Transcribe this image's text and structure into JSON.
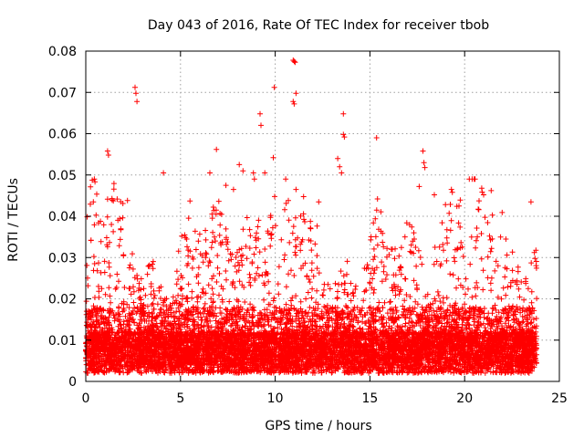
{
  "chart_data": {
    "type": "scatter",
    "title": "Day 043 of 2016, Rate Of TEC Index for receiver tbob",
    "xlabel": "GPS time / hours",
    "ylabel": "ROTI / TECUs",
    "xlim": [
      0,
      25
    ],
    "ylim": [
      0,
      0.08
    ],
    "xticks": [
      "0",
      "5",
      "10",
      "15",
      "20",
      "25"
    ],
    "yticks": [
      "0",
      "0.01",
      "0.02",
      "0.03",
      "0.04",
      "0.05",
      "0.06",
      "0.07",
      "0.08"
    ],
    "grid": true,
    "marker": "plus",
    "color": "#ff0000",
    "series": [
      {
        "name": "ROTI",
        "outliers": [
          [
            1.15,
            0.0558
          ],
          [
            1.2,
            0.0548
          ],
          [
            2.6,
            0.0712
          ],
          [
            2.65,
            0.0698
          ],
          [
            2.7,
            0.0678
          ],
          [
            4.1,
            0.0505
          ],
          [
            5.5,
            0.0437
          ],
          [
            6.55,
            0.0505
          ],
          [
            6.9,
            0.0562
          ],
          [
            7.4,
            0.0475
          ],
          [
            7.8,
            0.0465
          ],
          [
            8.1,
            0.0525
          ],
          [
            8.3,
            0.051
          ],
          [
            8.85,
            0.0505
          ],
          [
            8.9,
            0.049
          ],
          [
            9.2,
            0.0648
          ],
          [
            9.25,
            0.062
          ],
          [
            9.45,
            0.0505
          ],
          [
            9.95,
            0.0712
          ],
          [
            9.9,
            0.0542
          ],
          [
            10.95,
            0.0778
          ],
          [
            11.0,
            0.0775
          ],
          [
            11.05,
            0.0773
          ],
          [
            11.1,
            0.0698
          ],
          [
            10.95,
            0.0678
          ],
          [
            11.0,
            0.0672
          ],
          [
            11.1,
            0.0465
          ],
          [
            12.3,
            0.0435
          ],
          [
            13.3,
            0.054
          ],
          [
            13.4,
            0.052
          ],
          [
            13.5,
            0.0505
          ],
          [
            13.6,
            0.0648
          ],
          [
            13.6,
            0.0598
          ],
          [
            13.65,
            0.0592
          ],
          [
            15.35,
            0.059
          ],
          [
            15.4,
            0.0442
          ],
          [
            17.6,
            0.0472
          ],
          [
            17.8,
            0.0558
          ],
          [
            17.85,
            0.053
          ],
          [
            17.9,
            0.0518
          ],
          [
            18.4,
            0.0452
          ],
          [
            19.3,
            0.0465
          ],
          [
            19.35,
            0.0458
          ],
          [
            19.7,
            0.0425
          ],
          [
            20.9,
            0.0468
          ],
          [
            21.0,
            0.0452
          ],
          [
            21.4,
            0.0462
          ],
          [
            23.5,
            0.0435
          ],
          [
            0.4,
            0.0435
          ],
          [
            2.2,
            0.0438
          ]
        ]
      }
    ]
  }
}
